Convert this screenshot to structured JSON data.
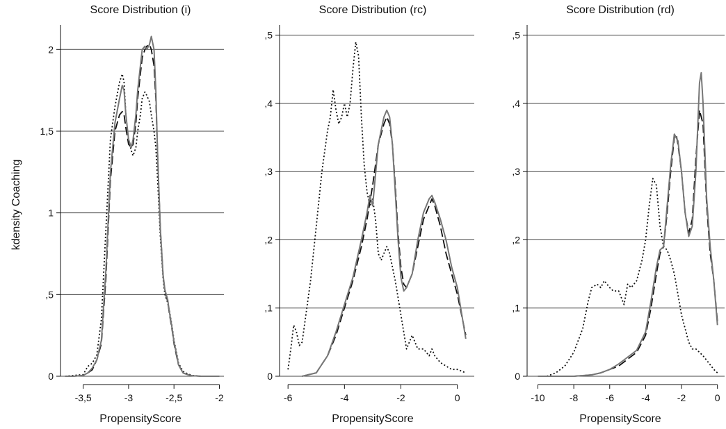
{
  "figure": {
    "ylabel": "kdensity Coaching"
  },
  "chart_data": [
    {
      "type": "line",
      "title": "Score Distribution (i)",
      "xlabel": "PropensityScore",
      "ylabel": "kdensity Coaching",
      "xlim": [
        -3.75,
        -1.95
      ],
      "ylim": [
        0,
        2.15
      ],
      "xticks": [
        {
          "value": -3.5,
          "label": "-3,5"
        },
        {
          "value": -3,
          "label": "-3"
        },
        {
          "value": -2.5,
          "label": "-2,5"
        },
        {
          "value": -2,
          "label": "-2"
        }
      ],
      "yticks": [
        {
          "value": 0,
          "label": "0"
        },
        {
          "value": 0.5,
          "label": ",5"
        },
        {
          "value": 1,
          "label": "1"
        },
        {
          "value": 1.5,
          "label": "1,5"
        },
        {
          "value": 2,
          "label": "2"
        }
      ],
      "grid": true,
      "series": [
        {
          "style": "dotted",
          "color": "#111111",
          "x": [
            -3.7,
            -3.6,
            -3.5,
            -3.45,
            -3.4,
            -3.35,
            -3.3,
            -3.25,
            -3.2,
            -3.15,
            -3.1,
            -3.07,
            -3.05,
            -3.03,
            -3.0,
            -2.97,
            -2.95,
            -2.92,
            -2.9,
            -2.87,
            -2.85,
            -2.82,
            -2.8,
            -2.77,
            -2.75,
            -2.72,
            -2.7,
            -2.68,
            -2.65,
            -2.62,
            -2.6,
            -2.57,
            -2.55,
            -2.52,
            -2.5,
            -2.47,
            -2.45,
            -2.42,
            -2.4,
            -2.35,
            -2.3,
            -2.2,
            -2.1,
            -2.0
          ],
          "y": [
            0,
            0.005,
            0.01,
            0.06,
            0.08,
            0.13,
            0.35,
            0.9,
            1.45,
            1.65,
            1.8,
            1.85,
            1.8,
            1.6,
            1.45,
            1.38,
            1.35,
            1.4,
            1.5,
            1.6,
            1.7,
            1.74,
            1.72,
            1.68,
            1.6,
            1.5,
            1.4,
            1.2,
            0.85,
            0.6,
            0.5,
            0.45,
            0.4,
            0.3,
            0.22,
            0.14,
            0.08,
            0.05,
            0.03,
            0.015,
            0.005,
            0,
            0,
            0
          ]
        },
        {
          "style": "dashed",
          "color": "#111111",
          "x": [
            -3.7,
            -3.6,
            -3.5,
            -3.45,
            -3.4,
            -3.35,
            -3.3,
            -3.25,
            -3.2,
            -3.15,
            -3.1,
            -3.07,
            -3.05,
            -3.03,
            -3.0,
            -2.97,
            -2.95,
            -2.92,
            -2.9,
            -2.87,
            -2.85,
            -2.82,
            -2.8,
            -2.77,
            -2.75,
            -2.72,
            -2.7,
            -2.68,
            -2.65,
            -2.62,
            -2.6,
            -2.57,
            -2.55,
            -2.52,
            -2.5,
            -2.47,
            -2.45,
            -2.42,
            -2.4,
            -2.35,
            -2.3,
            -2.2,
            -2.1,
            -2.0
          ],
          "y": [
            0,
            0,
            0.005,
            0.02,
            0.04,
            0.1,
            0.2,
            0.6,
            1.2,
            1.5,
            1.6,
            1.62,
            1.6,
            1.52,
            1.42,
            1.4,
            1.42,
            1.55,
            1.7,
            1.85,
            1.95,
            2.0,
            2.02,
            2.03,
            2.0,
            1.9,
            1.7,
            1.35,
            0.9,
            0.62,
            0.52,
            0.46,
            0.38,
            0.28,
            0.2,
            0.12,
            0.07,
            0.04,
            0.02,
            0.01,
            0.003,
            0,
            0,
            0
          ]
        },
        {
          "style": "solid",
          "color": "#777777",
          "x": [
            -3.7,
            -3.6,
            -3.5,
            -3.45,
            -3.4,
            -3.35,
            -3.3,
            -3.25,
            -3.2,
            -3.15,
            -3.1,
            -3.07,
            -3.05,
            -3.03,
            -3.0,
            -2.97,
            -2.95,
            -2.92,
            -2.9,
            -2.87,
            -2.85,
            -2.82,
            -2.8,
            -2.77,
            -2.75,
            -2.72,
            -2.7,
            -2.68,
            -2.65,
            -2.62,
            -2.6,
            -2.57,
            -2.55,
            -2.52,
            -2.5,
            -2.47,
            -2.45,
            -2.42,
            -2.4,
            -2.35,
            -2.3,
            -2.2,
            -2.1,
            -2.0
          ],
          "y": [
            0,
            0,
            0.005,
            0.02,
            0.05,
            0.1,
            0.22,
            0.65,
            1.25,
            1.55,
            1.7,
            1.78,
            1.75,
            1.6,
            1.45,
            1.4,
            1.45,
            1.6,
            1.75,
            1.9,
            2.0,
            2.02,
            2.0,
            2.03,
            2.08,
            2.0,
            1.75,
            1.35,
            0.9,
            0.62,
            0.53,
            0.47,
            0.39,
            0.29,
            0.21,
            0.13,
            0.07,
            0.04,
            0.02,
            0.01,
            0.003,
            0,
            0,
            0
          ]
        }
      ]
    },
    {
      "type": "line",
      "title": "Score Distribution (rc)",
      "xlabel": "PropensityScore",
      "xlim": [
        -6.3,
        0.6
      ],
      "ylim": [
        0,
        0.515
      ],
      "xticks": [
        {
          "value": -6,
          "label": "-6"
        },
        {
          "value": -4,
          "label": "-4"
        },
        {
          "value": -2,
          "label": "-2"
        },
        {
          "value": 0,
          "label": "0"
        }
      ],
      "yticks": [
        {
          "value": 0,
          "label": "0"
        },
        {
          "value": 0.1,
          "label": ",1"
        },
        {
          "value": 0.2,
          "label": ",2"
        },
        {
          "value": 0.3,
          "label": ",3"
        },
        {
          "value": 0.4,
          "label": ",4"
        },
        {
          "value": 0.5,
          "label": ",5"
        }
      ],
      "grid": true,
      "series": [
        {
          "style": "dotted",
          "color": "#111111",
          "x": [
            -6.0,
            -5.9,
            -5.8,
            -5.7,
            -5.6,
            -5.5,
            -5.4,
            -5.2,
            -5.0,
            -4.8,
            -4.6,
            -4.5,
            -4.4,
            -4.3,
            -4.2,
            -4.1,
            -4.0,
            -3.9,
            -3.8,
            -3.7,
            -3.6,
            -3.5,
            -3.4,
            -3.3,
            -3.2,
            -3.1,
            -3.0,
            -2.9,
            -2.8,
            -2.7,
            -2.6,
            -2.5,
            -2.4,
            -2.2,
            -2.0,
            -1.8,
            -1.6,
            -1.5,
            -1.4,
            -1.2,
            -1.0,
            -0.9,
            -0.8,
            -0.7,
            -0.6,
            -0.4,
            -0.2,
            0.0,
            0.3
          ],
          "y": [
            0.01,
            0.04,
            0.075,
            0.065,
            0.045,
            0.05,
            0.08,
            0.14,
            0.22,
            0.3,
            0.36,
            0.38,
            0.42,
            0.39,
            0.37,
            0.38,
            0.4,
            0.38,
            0.4,
            0.45,
            0.49,
            0.47,
            0.38,
            0.31,
            0.27,
            0.25,
            0.26,
            0.23,
            0.18,
            0.17,
            0.18,
            0.19,
            0.18,
            0.14,
            0.09,
            0.04,
            0.06,
            0.05,
            0.04,
            0.04,
            0.03,
            0.04,
            0.03,
            0.025,
            0.02,
            0.015,
            0.01,
            0.01,
            0.005
          ]
        },
        {
          "style": "dashed",
          "color": "#111111",
          "x": [
            -5.5,
            -5.0,
            -4.6,
            -4.3,
            -4.0,
            -3.7,
            -3.4,
            -3.2,
            -3.0,
            -2.8,
            -2.6,
            -2.5,
            -2.4,
            -2.3,
            -2.2,
            -2.1,
            -2.0,
            -1.9,
            -1.8,
            -1.6,
            -1.4,
            -1.2,
            -1.0,
            -0.9,
            -0.8,
            -0.6,
            -0.4,
            -0.2,
            0.0,
            0.3
          ],
          "y": [
            0,
            0.005,
            0.03,
            0.06,
            0.1,
            0.14,
            0.19,
            0.23,
            0.28,
            0.34,
            0.37,
            0.38,
            0.37,
            0.34,
            0.28,
            0.21,
            0.16,
            0.135,
            0.13,
            0.15,
            0.19,
            0.23,
            0.25,
            0.26,
            0.25,
            0.22,
            0.18,
            0.15,
            0.12,
            0.06
          ]
        },
        {
          "style": "solid",
          "color": "#777777",
          "x": [
            -5.5,
            -5.0,
            -4.6,
            -4.3,
            -4.0,
            -3.7,
            -3.4,
            -3.2,
            -3.1,
            -3.0,
            -2.8,
            -2.6,
            -2.5,
            -2.4,
            -2.3,
            -2.2,
            -2.1,
            -2.0,
            -1.9,
            -1.8,
            -1.6,
            -1.4,
            -1.2,
            -1.0,
            -0.9,
            -0.8,
            -0.6,
            -0.4,
            -0.2,
            0.0,
            0.3
          ],
          "y": [
            0,
            0.005,
            0.03,
            0.065,
            0.105,
            0.145,
            0.2,
            0.24,
            0.265,
            0.25,
            0.34,
            0.38,
            0.39,
            0.38,
            0.34,
            0.27,
            0.2,
            0.145,
            0.125,
            0.13,
            0.15,
            0.2,
            0.24,
            0.26,
            0.265,
            0.255,
            0.23,
            0.2,
            0.16,
            0.13,
            0.055
          ]
        }
      ]
    },
    {
      "type": "line",
      "title": "Score Distribution (rd)",
      "xlabel": "PropensityScore",
      "xlim": [
        -10.6,
        0.4
      ],
      "ylim": [
        0,
        0.515
      ],
      "xticks": [
        {
          "value": -10,
          "label": "-10"
        },
        {
          "value": -8,
          "label": "-8"
        },
        {
          "value": -6,
          "label": "-6"
        },
        {
          "value": -4,
          "label": "-4"
        },
        {
          "value": -2,
          "label": "-2"
        },
        {
          "value": 0,
          "label": "0"
        }
      ],
      "yticks": [
        {
          "value": 0,
          "label": "0"
        },
        {
          "value": 0.1,
          "label": ",1"
        },
        {
          "value": 0.2,
          "label": ",2"
        },
        {
          "value": 0.3,
          "label": ",3"
        },
        {
          "value": 0.4,
          "label": ",4"
        },
        {
          "value": 0.5,
          "label": ",5"
        }
      ],
      "grid": true,
      "series": [
        {
          "style": "dotted",
          "color": "#111111",
          "x": [
            -9.5,
            -9.0,
            -8.5,
            -8.0,
            -7.5,
            -7.2,
            -7.0,
            -6.7,
            -6.5,
            -6.3,
            -6.0,
            -5.8,
            -5.5,
            -5.2,
            -5.0,
            -4.8,
            -4.5,
            -4.2,
            -4.0,
            -3.8,
            -3.6,
            -3.4,
            -3.2,
            -3.0,
            -2.8,
            -2.6,
            -2.4,
            -2.2,
            -2.0,
            -1.8,
            -1.6,
            -1.4,
            -1.2,
            -1.0,
            -0.8,
            -0.5,
            -0.2,
            0.0
          ],
          "y": [
            0,
            0.005,
            0.015,
            0.035,
            0.07,
            0.11,
            0.13,
            0.135,
            0.13,
            0.14,
            0.13,
            0.125,
            0.125,
            0.105,
            0.135,
            0.13,
            0.14,
            0.17,
            0.2,
            0.25,
            0.29,
            0.28,
            0.22,
            0.19,
            0.185,
            0.17,
            0.15,
            0.12,
            0.09,
            0.07,
            0.05,
            0.04,
            0.04,
            0.035,
            0.03,
            0.02,
            0.01,
            0.005
          ]
        },
        {
          "style": "dashed",
          "color": "#111111",
          "x": [
            -10.0,
            -9.0,
            -8.0,
            -7.0,
            -6.5,
            -6.0,
            -5.5,
            -5.0,
            -4.5,
            -4.0,
            -3.7,
            -3.4,
            -3.2,
            -3.0,
            -2.8,
            -2.6,
            -2.4,
            -2.3,
            -2.2,
            -2.0,
            -1.8,
            -1.6,
            -1.4,
            -1.2,
            -1.0,
            -0.8,
            -0.6,
            -0.4,
            -0.2,
            0.0
          ],
          "y": [
            0,
            0,
            0,
            0.002,
            0.005,
            0.01,
            0.015,
            0.025,
            0.035,
            0.06,
            0.1,
            0.15,
            0.18,
            0.19,
            0.24,
            0.3,
            0.35,
            0.355,
            0.34,
            0.3,
            0.24,
            0.21,
            0.23,
            0.32,
            0.39,
            0.37,
            0.25,
            0.18,
            0.14,
            0.08
          ]
        },
        {
          "style": "solid",
          "color": "#777777",
          "x": [
            -10.0,
            -9.0,
            -8.0,
            -7.0,
            -6.5,
            -6.0,
            -5.5,
            -5.0,
            -4.5,
            -4.0,
            -3.7,
            -3.4,
            -3.2,
            -3.0,
            -2.8,
            -2.6,
            -2.4,
            -2.3,
            -2.2,
            -2.0,
            -1.8,
            -1.6,
            -1.4,
            -1.2,
            -1.0,
            -0.9,
            -0.8,
            -0.6,
            -0.4,
            -0.2,
            0.0
          ],
          "y": [
            0,
            0,
            0,
            0.002,
            0.005,
            0.01,
            0.018,
            0.028,
            0.038,
            0.065,
            0.11,
            0.16,
            0.185,
            0.19,
            0.25,
            0.31,
            0.355,
            0.35,
            0.345,
            0.3,
            0.24,
            0.205,
            0.22,
            0.3,
            0.43,
            0.445,
            0.4,
            0.26,
            0.19,
            0.14,
            0.075
          ]
        }
      ]
    }
  ]
}
